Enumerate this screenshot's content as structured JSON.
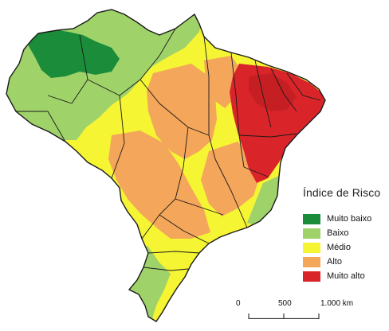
{
  "legend": {
    "title": "Índice de Risco",
    "subtitle": "",
    "items": [
      {
        "label": "Muito baixo",
        "color": "#1a8c3a"
      },
      {
        "label": "Baixo",
        "color": "#9fd36a"
      },
      {
        "label": "Médio",
        "color": "#f5f534"
      },
      {
        "label": "Alto",
        "color": "#f4a65a"
      },
      {
        "label": "Muito alto",
        "color": "#d9252a"
      }
    ]
  },
  "scale_bar": {
    "ticks": [
      "0",
      "500",
      "1.000 km"
    ]
  },
  "colors": {
    "border": "#1a1a1a",
    "muito_baixo": "#1a8c3a",
    "baixo": "#9fd36a",
    "medio": "#f5f534",
    "alto": "#f4a65a",
    "muito_alto": "#d9252a"
  }
}
